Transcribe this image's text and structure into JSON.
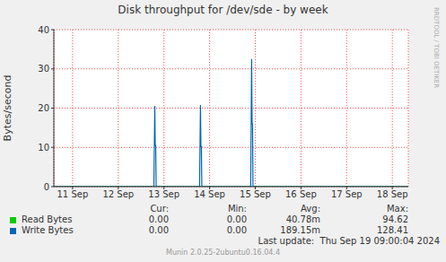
{
  "chart_data": {
    "type": "line",
    "title": "Disk throughput for /dev/sde - by week",
    "y_label": "Bytes/second",
    "x": [
      11.09,
      13.28,
      13.29,
      13.3,
      13.31,
      13.32,
      13.33,
      14.28,
      14.29,
      14.3,
      14.31,
      14.32,
      14.33,
      15.4,
      15.41,
      15.42,
      15.43,
      15.44,
      15.45,
      18.85
    ],
    "series": [
      {
        "name": "Read Bytes",
        "color": "#00cc00",
        "values": [
          0,
          0,
          0,
          0,
          0,
          0,
          0,
          0,
          0,
          0,
          0,
          0,
          0,
          0,
          0,
          0,
          0,
          0,
          0,
          0
        ],
        "stats": [
          "0.00",
          "0.00",
          "40.78m",
          "94.62"
        ]
      },
      {
        "name": "Write Bytes",
        "color": "#0066b3",
        "values": [
          0,
          0,
          10.5,
          20.5,
          10.5,
          10.5,
          0,
          0,
          10.2,
          20.8,
          10.2,
          10.2,
          0,
          0,
          16,
          32.5,
          16,
          16,
          0,
          0
        ],
        "stats": [
          "0.00",
          "0.00",
          "189.15m",
          "128.41"
        ]
      }
    ],
    "legend_columns": [
      "Cur:",
      "Min:",
      "Avg:",
      "Max:"
    ],
    "xlim": [
      11.09,
      18.85
    ],
    "xticks": [
      {
        "value": 11.5,
        "label": "11 Sep"
      },
      {
        "value": 12.5,
        "label": "12 Sep"
      },
      {
        "value": 13.5,
        "label": "13 Sep"
      },
      {
        "value": 14.5,
        "label": "14 Sep"
      },
      {
        "value": 15.5,
        "label": "15 Sep"
      },
      {
        "value": 16.5,
        "label": "16 Sep"
      },
      {
        "value": 17.5,
        "label": "17 Sep"
      },
      {
        "value": 18.5,
        "label": "18 Sep"
      }
    ],
    "ylim": [
      0,
      40
    ],
    "yticks": [
      0,
      10,
      20,
      30,
      40
    ],
    "grid": true,
    "annotations": [
      "Last update:  Thu Sep 19 09:00:04 2024",
      "Munin 2.0.25-2ubuntu0.16.04.4",
      "RRDTOOL / TOBI OETIKER"
    ]
  }
}
